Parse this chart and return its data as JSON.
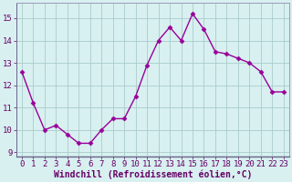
{
  "x": [
    0,
    1,
    2,
    3,
    4,
    5,
    6,
    7,
    8,
    9,
    10,
    11,
    12,
    13,
    14,
    15,
    16,
    17,
    18,
    19,
    20,
    21,
    22,
    23
  ],
  "y": [
    12.6,
    11.2,
    10.0,
    10.2,
    9.8,
    9.4,
    9.4,
    10.0,
    10.5,
    10.5,
    11.5,
    12.9,
    14.0,
    14.6,
    14.0,
    15.2,
    14.5,
    13.5,
    13.4,
    13.2,
    13.0,
    12.6,
    11.7,
    11.7
  ],
  "line_color": "#990099",
  "marker": "D",
  "marker_size": 2.5,
  "bg_color": "#d8f0f0",
  "grid_color": "#aacccc",
  "xlabel": "Windchill (Refroidissement éolien,°C)",
  "xlabel_color": "#660066",
  "xlabel_fontsize": 7,
  "tick_label_color": "#660066",
  "tick_fontsize": 6.5,
  "ylim_low": 8.8,
  "ylim_high": 15.7,
  "yticks": [
    9,
    10,
    11,
    12,
    13,
    14,
    15
  ],
  "xticks": [
    0,
    1,
    2,
    3,
    4,
    5,
    6,
    7,
    8,
    9,
    10,
    11,
    12,
    13,
    14,
    15,
    16,
    17,
    18,
    19,
    20,
    21,
    22,
    23
  ],
  "spine_color": "#9999bb",
  "grid_linewidth": 0.6,
  "line_width": 1.0
}
